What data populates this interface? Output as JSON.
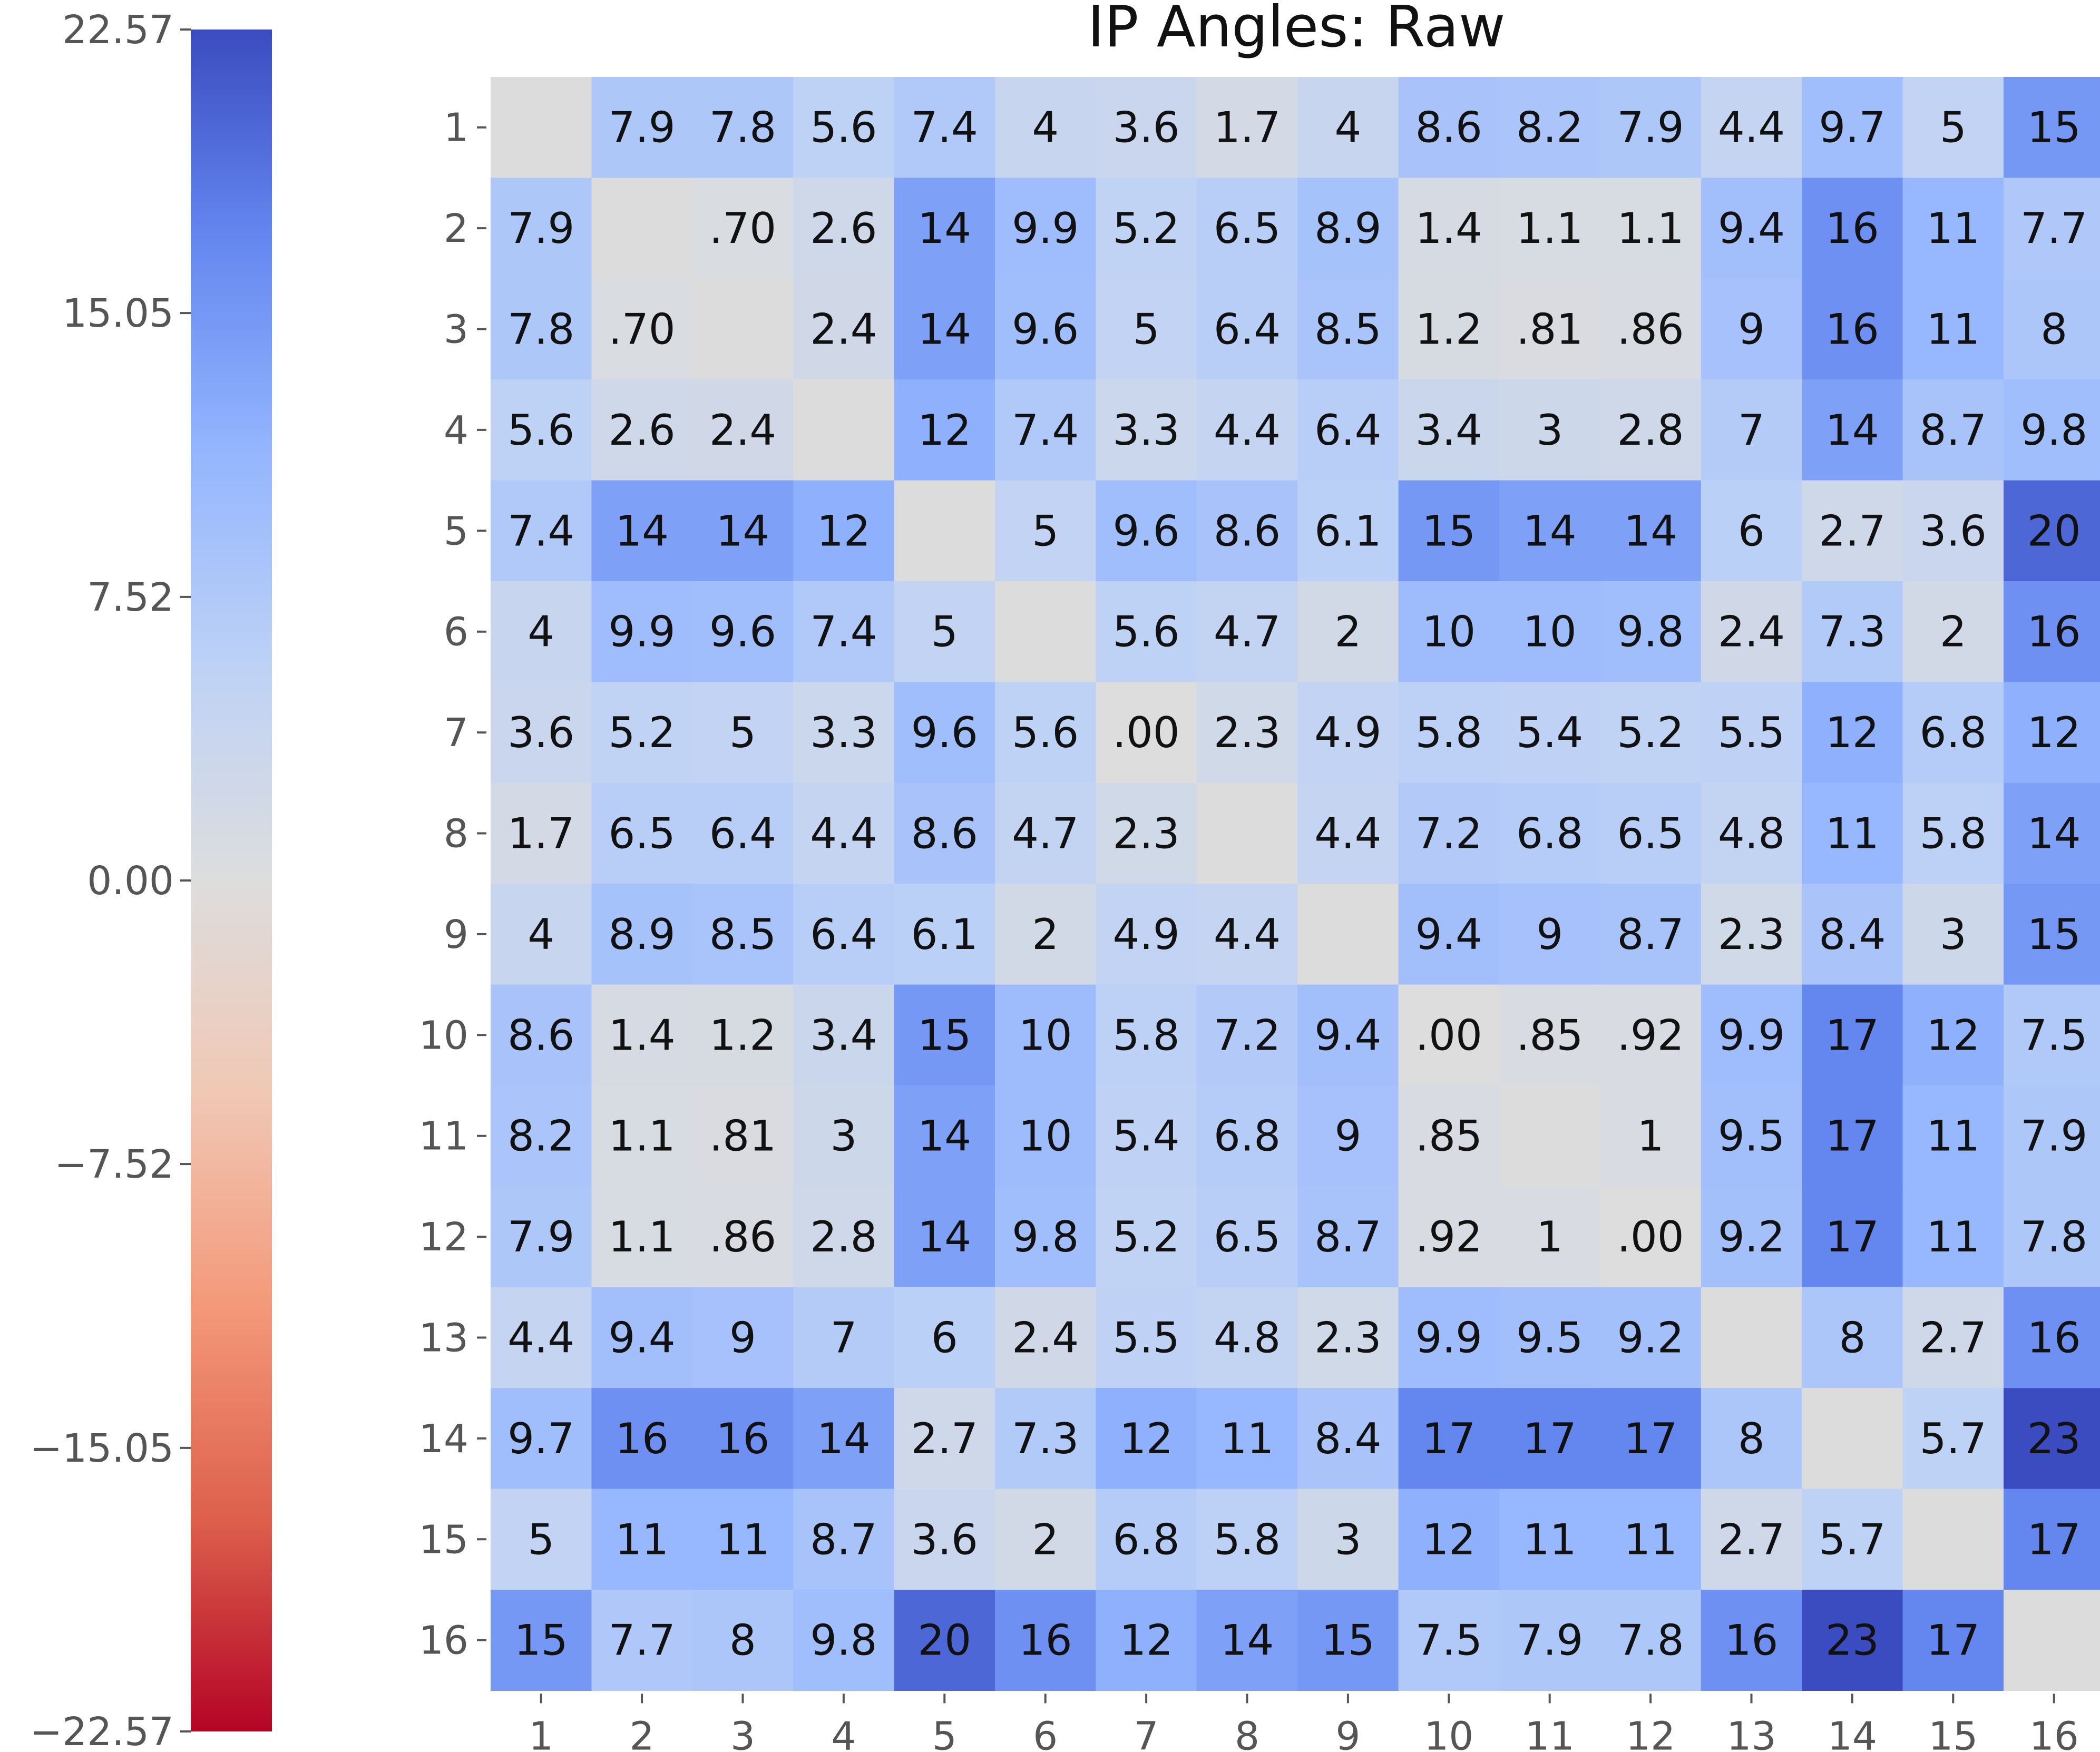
{
  "chart_data": {
    "type": "heatmap",
    "title": "IP Angles: Raw",
    "xlabel": "",
    "ylabel": "",
    "x_categories": [
      "1",
      "2",
      "3",
      "4",
      "5",
      "6",
      "7",
      "8",
      "9",
      "10",
      "11",
      "12",
      "13",
      "14",
      "15",
      "16"
    ],
    "y_categories": [
      "1",
      "2",
      "3",
      "4",
      "5",
      "6",
      "7",
      "8",
      "9",
      "10",
      "11",
      "12",
      "13",
      "14",
      "15",
      "16"
    ],
    "colorbar": {
      "colormap": "coolwarm (reversed: blue = high, red = low)",
      "vmin": -22.57,
      "vmax": 22.57,
      "ticks": [
        "22.57",
        "15.05",
        "7.52",
        "0.00",
        "−7.52",
        "−15.05",
        "−22.57"
      ],
      "tick_values": [
        22.57,
        15.05,
        7.52,
        0.0,
        -7.52,
        -15.05,
        -22.57
      ],
      "placement": "left"
    },
    "values": [
      [
        null,
        7.9,
        7.8,
        5.6,
        7.4,
        4,
        3.6,
        1.7,
        4,
        8.6,
        8.2,
        7.9,
        4.4,
        9.7,
        5,
        15
      ],
      [
        7.9,
        null,
        0.7,
        2.6,
        14,
        9.9,
        5.2,
        6.5,
        8.9,
        1.4,
        1.1,
        1.1,
        9.4,
        16,
        11,
        7.7
      ],
      [
        7.8,
        0.7,
        null,
        2.4,
        14,
        9.6,
        5,
        6.4,
        8.5,
        1.2,
        0.81,
        0.86,
        9,
        16,
        11,
        8
      ],
      [
        5.6,
        2.6,
        2.4,
        null,
        12,
        7.4,
        3.3,
        4.4,
        6.4,
        3.4,
        3,
        2.8,
        7,
        14,
        8.7,
        9.8
      ],
      [
        7.4,
        14,
        14,
        12,
        null,
        5,
        9.6,
        8.6,
        6.1,
        15,
        14,
        14,
        6,
        2.7,
        3.6,
        20
      ],
      [
        4,
        9.9,
        9.6,
        7.4,
        5,
        null,
        5.6,
        4.7,
        2,
        10,
        10,
        9.8,
        2.4,
        7.3,
        2,
        16
      ],
      [
        3.6,
        5.2,
        5,
        3.3,
        9.6,
        5.6,
        0.0,
        2.3,
        4.9,
        5.8,
        5.4,
        5.2,
        5.5,
        12,
        6.8,
        12
      ],
      [
        1.7,
        6.5,
        6.4,
        4.4,
        8.6,
        4.7,
        2.3,
        null,
        4.4,
        7.2,
        6.8,
        6.5,
        4.8,
        11,
        5.8,
        14
      ],
      [
        4,
        8.9,
        8.5,
        6.4,
        6.1,
        2,
        4.9,
        4.4,
        null,
        9.4,
        9,
        8.7,
        2.3,
        8.4,
        3,
        15
      ],
      [
        8.6,
        1.4,
        1.2,
        3.4,
        15,
        10,
        5.8,
        7.2,
        9.4,
        0.0,
        0.85,
        0.92,
        9.9,
        17,
        12,
        7.5
      ],
      [
        8.2,
        1.1,
        0.81,
        3,
        14,
        10,
        5.4,
        6.8,
        9,
        0.85,
        null,
        1,
        9.5,
        17,
        11,
        7.9
      ],
      [
        7.9,
        1.1,
        0.86,
        2.8,
        14,
        9.8,
        5.2,
        6.5,
        8.7,
        0.92,
        1,
        0.0,
        9.2,
        17,
        11,
        7.8
      ],
      [
        4.4,
        9.4,
        9,
        7,
        6,
        2.4,
        5.5,
        4.8,
        2.3,
        9.9,
        9.5,
        9.2,
        null,
        8,
        2.7,
        16
      ],
      [
        9.7,
        16,
        16,
        14,
        2.7,
        7.3,
        12,
        11,
        8.4,
        17,
        17,
        17,
        8,
        null,
        5.7,
        23
      ],
      [
        5,
        11,
        11,
        8.7,
        3.6,
        2,
        6.8,
        5.8,
        3,
        12,
        11,
        11,
        2.7,
        5.7,
        null,
        17
      ],
      [
        15,
        7.7,
        8,
        9.8,
        20,
        16,
        12,
        14,
        15,
        7.5,
        7.9,
        7.8,
        16,
        23,
        17,
        null
      ]
    ],
    "labels": [
      [
        "",
        "7.9",
        "7.8",
        "5.6",
        "7.4",
        "4",
        "3.6",
        "1.7",
        "4",
        "8.6",
        "8.2",
        "7.9",
        "4.4",
        "9.7",
        "5",
        "15"
      ],
      [
        "7.9",
        "",
        ".70",
        "2.6",
        "14",
        "9.9",
        "5.2",
        "6.5",
        "8.9",
        "1.4",
        "1.1",
        "1.1",
        "9.4",
        "16",
        "11",
        "7.7"
      ],
      [
        "7.8",
        ".70",
        "",
        "2.4",
        "14",
        "9.6",
        "5",
        "6.4",
        "8.5",
        "1.2",
        ".81",
        ".86",
        "9",
        "16",
        "11",
        "8"
      ],
      [
        "5.6",
        "2.6",
        "2.4",
        "",
        "12",
        "7.4",
        "3.3",
        "4.4",
        "6.4",
        "3.4",
        "3",
        "2.8",
        "7",
        "14",
        "8.7",
        "9.8"
      ],
      [
        "7.4",
        "14",
        "14",
        "12",
        "",
        "5",
        "9.6",
        "8.6",
        "6.1",
        "15",
        "14",
        "14",
        "6",
        "2.7",
        "3.6",
        "20"
      ],
      [
        "4",
        "9.9",
        "9.6",
        "7.4",
        "5",
        "",
        "5.6",
        "4.7",
        "2",
        "10",
        "10",
        "9.8",
        "2.4",
        "7.3",
        "2",
        "16"
      ],
      [
        "3.6",
        "5.2",
        "5",
        "3.3",
        "9.6",
        "5.6",
        ".00",
        "2.3",
        "4.9",
        "5.8",
        "5.4",
        "5.2",
        "5.5",
        "12",
        "6.8",
        "12"
      ],
      [
        "1.7",
        "6.5",
        "6.4",
        "4.4",
        "8.6",
        "4.7",
        "2.3",
        "",
        "4.4",
        "7.2",
        "6.8",
        "6.5",
        "4.8",
        "11",
        "5.8",
        "14"
      ],
      [
        "4",
        "8.9",
        "8.5",
        "6.4",
        "6.1",
        "2",
        "4.9",
        "4.4",
        "",
        "9.4",
        "9",
        "8.7",
        "2.3",
        "8.4",
        "3",
        "15"
      ],
      [
        "8.6",
        "1.4",
        "1.2",
        "3.4",
        "15",
        "10",
        "5.8",
        "7.2",
        "9.4",
        ".00",
        ".85",
        ".92",
        "9.9",
        "17",
        "12",
        "7.5"
      ],
      [
        "8.2",
        "1.1",
        ".81",
        "3",
        "14",
        "10",
        "5.4",
        "6.8",
        "9",
        ".85",
        "",
        "1",
        "9.5",
        "17",
        "11",
        "7.9"
      ],
      [
        "7.9",
        "1.1",
        ".86",
        "2.8",
        "14",
        "9.8",
        "5.2",
        "6.5",
        "8.7",
        ".92",
        "1",
        ".00",
        "9.2",
        "17",
        "11",
        "7.8"
      ],
      [
        "4.4",
        "9.4",
        "9",
        "7",
        "6",
        "2.4",
        "5.5",
        "4.8",
        "2.3",
        "9.9",
        "9.5",
        "9.2",
        "",
        "8",
        "2.7",
        "16"
      ],
      [
        "9.7",
        "16",
        "16",
        "14",
        "2.7",
        "7.3",
        "12",
        "11",
        "8.4",
        "17",
        "17",
        "17",
        "8",
        "",
        "5.7",
        "23"
      ],
      [
        "5",
        "11",
        "11",
        "8.7",
        "3.6",
        "2",
        "6.8",
        "5.8",
        "3",
        "12",
        "11",
        "11",
        "2.7",
        "5.7",
        "",
        "17"
      ],
      [
        "15",
        "7.7",
        "8",
        "9.8",
        "20",
        "16",
        "12",
        "14",
        "15",
        "7.5",
        "7.9",
        "7.8",
        "16",
        "23",
        "17",
        ""
      ]
    ],
    "grid": false
  }
}
